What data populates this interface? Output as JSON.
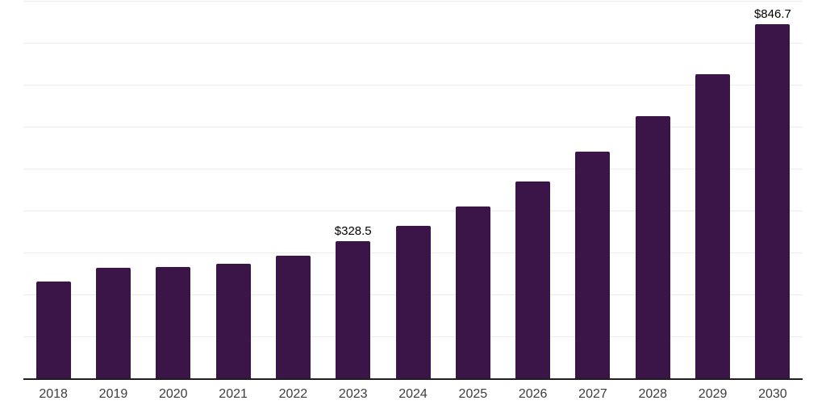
{
  "chart_data": {
    "type": "bar",
    "title": "",
    "xlabel": "",
    "ylabel": "",
    "categories": [
      "2018",
      "2019",
      "2020",
      "2021",
      "2022",
      "2023",
      "2024",
      "2025",
      "2026",
      "2027",
      "2028",
      "2029",
      "2030"
    ],
    "values": [
      232,
      265,
      267,
      276,
      295,
      328.5,
      366,
      412,
      471,
      543,
      627,
      727,
      846.7
    ],
    "data_labels": [
      "",
      "",
      "",
      "",
      "",
      "$328.5",
      "",
      "",
      "",
      "",
      "",
      "",
      "$846.7"
    ],
    "ylim": [
      0,
      900
    ],
    "gridline_step": 100,
    "grid": true,
    "legend": false,
    "colors": {
      "bar_fill": "#3b1448",
      "gridline": "#ececec",
      "axis_line": "#1f1f1f",
      "tick_label": "#3d3d3d",
      "data_label": "#000000",
      "background": "#ffffff"
    }
  }
}
